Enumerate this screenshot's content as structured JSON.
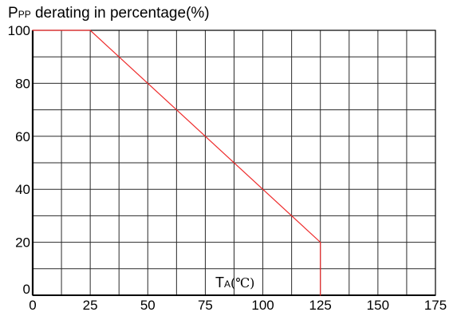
{
  "chart_data": {
    "type": "line",
    "title": {
      "main": "P",
      "subscript": "PP",
      "rest": " derating in percentage(%)"
    },
    "xlabel": {
      "main": "T",
      "subscript": "A",
      "unit": "(℃)"
    },
    "ylabel": "",
    "x_ticks": [
      0,
      25,
      50,
      75,
      100,
      125,
      150,
      175
    ],
    "y_ticks": [
      0,
      20,
      40,
      60,
      80,
      100
    ],
    "xlim": [
      0,
      175
    ],
    "ylim": [
      0,
      100
    ],
    "grid": true,
    "grid_x_step": 12.5,
    "grid_y_step": 10,
    "series": [
      {
        "color": "#ee2b2b",
        "points": [
          [
            0,
            100
          ],
          [
            25,
            100
          ],
          [
            125,
            20
          ],
          [
            125,
            0
          ]
        ]
      }
    ]
  }
}
